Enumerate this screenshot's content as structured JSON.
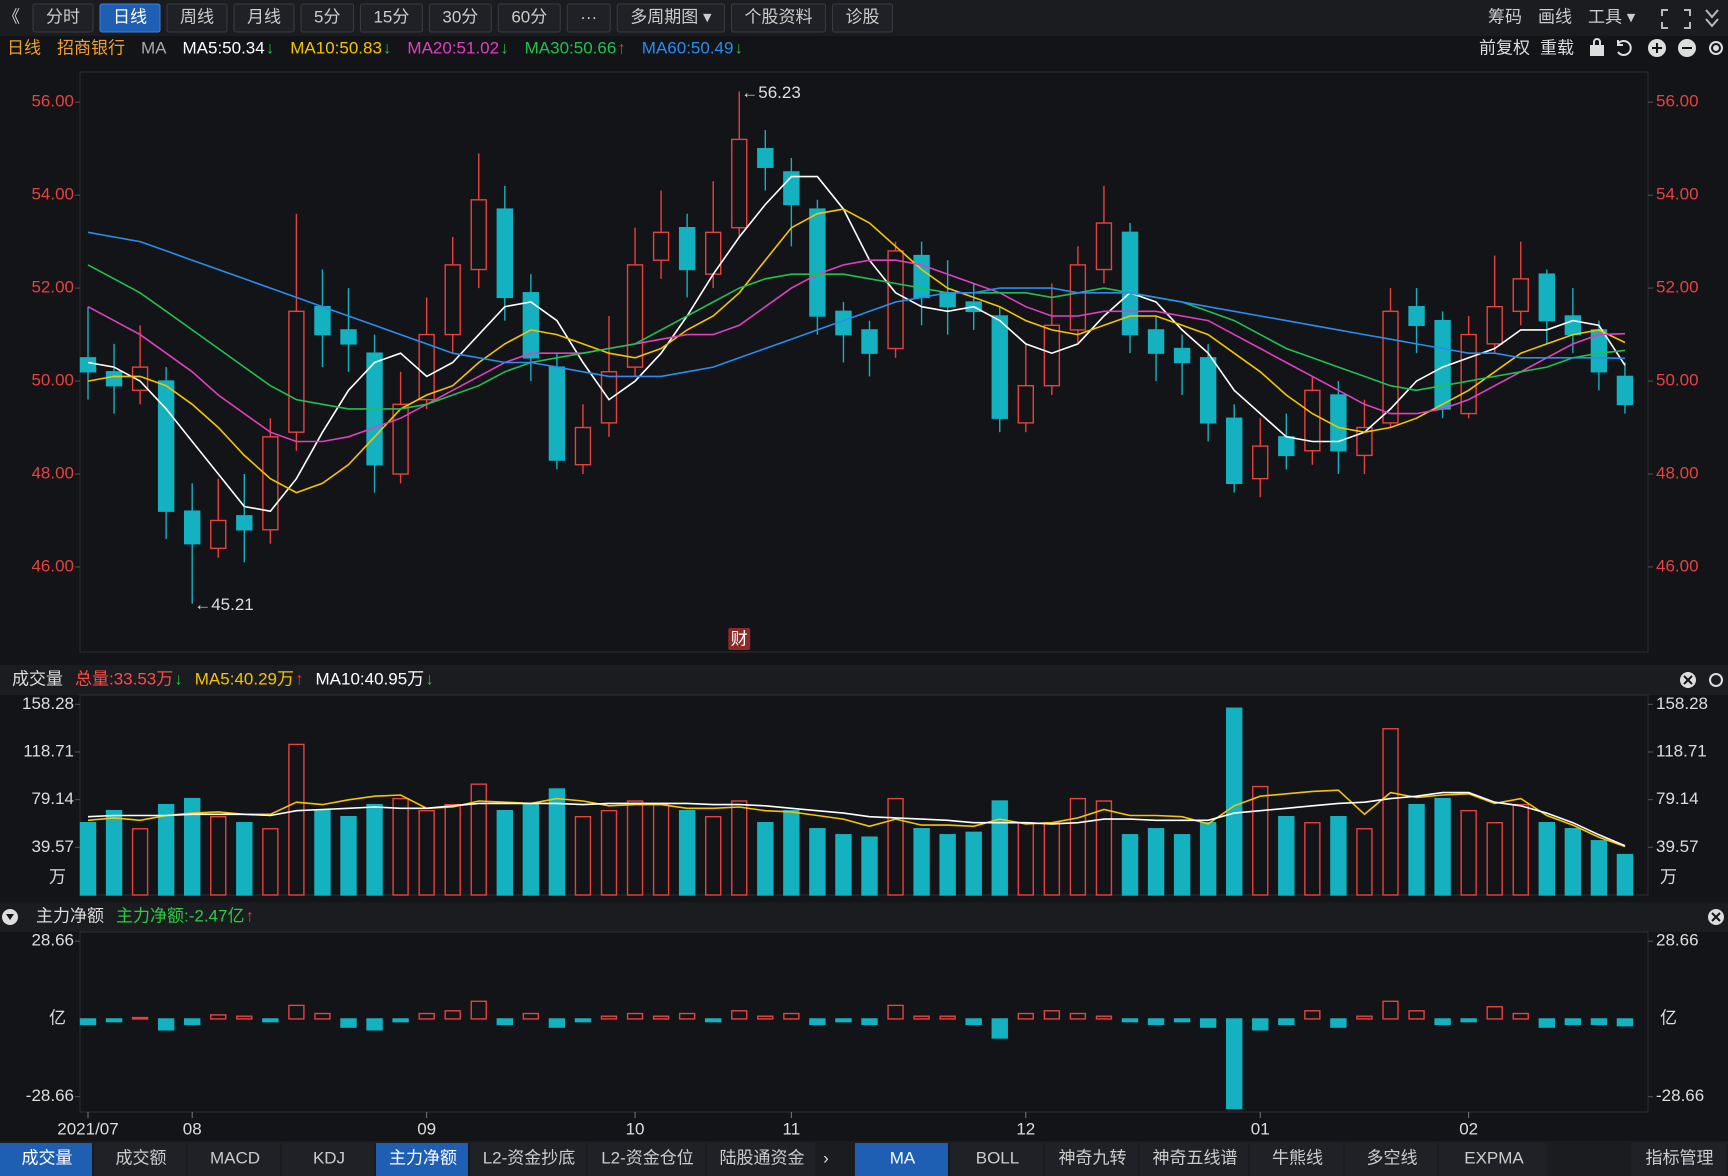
{
  "toolbar": {
    "back": "《",
    "active": 1,
    "tabs": [
      "分时",
      "日线",
      "周线",
      "月线",
      "5分",
      "15分",
      "30分",
      "60分",
      "···",
      "多周期图 ▾",
      "个股资料",
      "诊股"
    ],
    "right": [
      "筹码",
      "画线",
      "工具 ▾"
    ]
  },
  "info": {
    "period": "日线",
    "stock": "招商银行",
    "indicator": "MA",
    "right": [
      "前复权",
      "重载"
    ]
  },
  "chart_data": [
    {
      "type": "candlestick",
      "categories": [
        "2021/07",
        null,
        null,
        null,
        "08",
        null,
        null,
        null,
        null,
        null,
        null,
        null,
        null,
        "09",
        null,
        null,
        null,
        null,
        null,
        null,
        null,
        "10",
        null,
        null,
        null,
        null,
        null,
        "11",
        null,
        null,
        null,
        null,
        null,
        null,
        null,
        null,
        "12",
        null,
        null,
        null,
        null,
        null,
        null,
        null,
        null,
        "01",
        null,
        null,
        null,
        null,
        null,
        null,
        null,
        "02",
        null,
        null,
        null,
        null,
        null,
        null
      ],
      "open": [
        50.5,
        50.2,
        49.8,
        50.0,
        47.2,
        46.4,
        47.1,
        46.8,
        48.9,
        51.6,
        51.1,
        50.6,
        48.0,
        49.6,
        51.0,
        52.4,
        53.7,
        51.9,
        50.3,
        48.2,
        49.1,
        50.3,
        52.6,
        53.3,
        52.3,
        53.3,
        55.0,
        54.5,
        53.7,
        51.5,
        51.1,
        50.7,
        52.7,
        51.9,
        51.7,
        51.4,
        49.1,
        49.9,
        51.1,
        52.4,
        53.2,
        51.1,
        50.7,
        50.5,
        49.2,
        47.9,
        48.8,
        48.5,
        49.7,
        48.4,
        49.1,
        51.6,
        51.3,
        49.3,
        50.8,
        51.5,
        52.3,
        51.4,
        51.1,
        50.1
      ],
      "high": [
        51.6,
        50.8,
        51.2,
        50.3,
        47.8,
        47.9,
        48.0,
        49.2,
        53.6,
        52.4,
        52.0,
        51.0,
        50.2,
        51.8,
        53.1,
        54.9,
        54.2,
        52.3,
        50.6,
        49.5,
        51.4,
        53.3,
        54.1,
        53.6,
        54.3,
        56.23,
        55.4,
        54.8,
        53.9,
        51.7,
        51.3,
        53.0,
        53.0,
        52.6,
        52.1,
        51.6,
        50.8,
        52.1,
        52.9,
        54.2,
        53.4,
        51.4,
        51.0,
        50.8,
        49.5,
        49.2,
        49.3,
        50.1,
        50.0,
        49.6,
        52.0,
        52.0,
        51.5,
        51.4,
        52.7,
        53.0,
        52.4,
        52.0,
        51.3,
        50.4
      ],
      "low": [
        49.6,
        49.3,
        49.5,
        46.6,
        45.21,
        46.2,
        46.1,
        46.5,
        48.5,
        50.3,
        50.2,
        47.6,
        47.8,
        49.4,
        50.6,
        52.0,
        51.3,
        50.0,
        48.1,
        48.0,
        48.8,
        50.1,
        52.2,
        51.8,
        52.0,
        53.1,
        54.1,
        52.9,
        51.0,
        50.4,
        50.1,
        50.5,
        51.2,
        51.0,
        51.1,
        48.9,
        48.9,
        49.7,
        50.8,
        52.1,
        50.6,
        50.0,
        49.7,
        48.7,
        47.6,
        47.5,
        48.1,
        48.2,
        48.0,
        48.0,
        49.0,
        50.6,
        49.2,
        49.2,
        50.6,
        51.2,
        50.8,
        50.6,
        49.8,
        49.3
      ],
      "close": [
        50.2,
        49.9,
        50.3,
        47.2,
        46.5,
        47.0,
        46.8,
        48.8,
        51.5,
        51.0,
        50.8,
        48.2,
        49.5,
        51.0,
        52.5,
        53.9,
        51.8,
        50.5,
        48.3,
        49.0,
        50.2,
        52.5,
        53.2,
        52.4,
        53.2,
        55.2,
        54.6,
        53.8,
        51.4,
        51.0,
        50.6,
        52.8,
        51.8,
        51.6,
        51.5,
        49.2,
        49.9,
        51.2,
        52.5,
        53.4,
        51.0,
        50.6,
        50.4,
        49.1,
        47.8,
        48.6,
        48.4,
        49.8,
        48.5,
        49.0,
        51.5,
        51.2,
        49.4,
        51.0,
        51.6,
        52.2,
        51.3,
        51.0,
        50.2,
        49.5
      ],
      "up_color": "#e8413f",
      "down_color": "#14b1c0",
      "ylim": [
        44.17,
        56.65
      ],
      "yticks": [
        {
          "value": 46,
          "label": "46.00"
        },
        {
          "value": 48,
          "label": "48.00"
        },
        {
          "value": 50,
          "label": "50.00"
        },
        {
          "value": 52,
          "label": "52.00"
        },
        {
          "value": 54,
          "label": "54.00"
        },
        {
          "value": 56,
          "label": "56.00"
        }
      ],
      "high_label": "←56.23",
      "low_label": "←45.21",
      "event_marker": "财",
      "series": [
        {
          "name": "MA5:50.34",
          "trend": "↓",
          "trend_color": "#1fc02f",
          "color": "#ffffff",
          "values": [
            50.4,
            50.3,
            50.0,
            49.4,
            48.7,
            48.0,
            47.3,
            47.2,
            47.9,
            48.9,
            49.8,
            50.4,
            50.6,
            50.1,
            50.4,
            51.0,
            51.6,
            51.7,
            51.3,
            50.4,
            49.6,
            50.0,
            50.6,
            51.4,
            52.3,
            53.1,
            53.8,
            54.4,
            54.4,
            53.7,
            52.6,
            51.9,
            51.6,
            51.5,
            51.6,
            51.3,
            50.8,
            50.6,
            50.8,
            51.4,
            51.9,
            51.7,
            51.1,
            50.6,
            49.8,
            49.3,
            48.8,
            48.7,
            48.7,
            48.9,
            49.4,
            50.0,
            50.3,
            50.5,
            50.7,
            51.1,
            51.1,
            51.3,
            51.2,
            50.34
          ]
        },
        {
          "name": "MA10:50.83",
          "trend": "↓",
          "trend_color": "#1fc02f",
          "color": "#f5c400",
          "values": [
            50.0,
            50.1,
            50.1,
            49.9,
            49.5,
            49.0,
            48.4,
            47.9,
            47.6,
            47.8,
            48.2,
            48.8,
            49.4,
            49.7,
            49.9,
            50.4,
            50.8,
            51.1,
            51.0,
            50.8,
            50.6,
            50.5,
            50.7,
            51.1,
            51.4,
            51.9,
            52.6,
            53.3,
            53.6,
            53.7,
            53.4,
            52.9,
            52.4,
            52.0,
            51.8,
            51.6,
            51.3,
            51.1,
            51.0,
            51.2,
            51.4,
            51.4,
            51.2,
            51.0,
            50.6,
            50.2,
            49.7,
            49.3,
            49.0,
            48.9,
            49.0,
            49.2,
            49.5,
            49.8,
            50.2,
            50.6,
            50.8,
            51.0,
            51.1,
            50.83
          ]
        },
        {
          "name": "MA20:51.02",
          "trend": "↓",
          "trend_color": "#1fc02f",
          "color": "#e040c0",
          "values": [
            51.6,
            51.3,
            51.0,
            50.6,
            50.2,
            49.7,
            49.3,
            48.9,
            48.7,
            48.7,
            48.8,
            49.0,
            49.2,
            49.5,
            49.8,
            50.1,
            50.4,
            50.6,
            50.6,
            50.6,
            50.7,
            50.8,
            50.9,
            51.0,
            51.0,
            51.2,
            51.6,
            52.0,
            52.3,
            52.5,
            52.6,
            52.6,
            52.5,
            52.3,
            52.1,
            51.9,
            51.6,
            51.4,
            51.4,
            51.5,
            51.5,
            51.5,
            51.4,
            51.3,
            51.0,
            50.7,
            50.4,
            50.1,
            49.8,
            49.5,
            49.3,
            49.3,
            49.4,
            49.6,
            49.9,
            50.2,
            50.5,
            50.8,
            51.0,
            51.02
          ]
        },
        {
          "name": "MA30:50.66",
          "trend": "↑",
          "trend_color": "#ff3333",
          "color": "#20c050",
          "values": [
            52.5,
            52.2,
            51.9,
            51.5,
            51.1,
            50.7,
            50.3,
            49.9,
            49.6,
            49.5,
            49.4,
            49.4,
            49.4,
            49.5,
            49.7,
            49.9,
            50.2,
            50.4,
            50.5,
            50.6,
            50.7,
            50.8,
            51.1,
            51.4,
            51.7,
            52.0,
            52.2,
            52.3,
            52.3,
            52.3,
            52.2,
            52.1,
            52.0,
            51.9,
            51.9,
            51.9,
            51.9,
            51.8,
            51.9,
            52.0,
            51.9,
            51.8,
            51.7,
            51.5,
            51.3,
            51.0,
            50.7,
            50.5,
            50.3,
            50.1,
            49.9,
            49.8,
            49.9,
            50.0,
            50.1,
            50.2,
            50.3,
            50.5,
            50.6,
            50.66
          ]
        },
        {
          "name": "MA60:50.49",
          "trend": "↓",
          "trend_color": "#1fc02f",
          "color": "#2a8cf0",
          "values": [
            53.2,
            53.1,
            53.0,
            52.8,
            52.6,
            52.4,
            52.2,
            52.0,
            51.8,
            51.6,
            51.4,
            51.2,
            51.0,
            50.8,
            50.6,
            50.5,
            50.4,
            50.4,
            50.3,
            50.2,
            50.1,
            50.1,
            50.1,
            50.2,
            50.3,
            50.5,
            50.7,
            50.9,
            51.1,
            51.3,
            51.5,
            51.7,
            51.8,
            51.9,
            51.9,
            52.0,
            52.0,
            52.0,
            51.9,
            51.9,
            51.9,
            51.8,
            51.7,
            51.6,
            51.5,
            51.4,
            51.3,
            51.2,
            51.1,
            51.0,
            50.9,
            50.8,
            50.7,
            50.6,
            50.6,
            50.5,
            50.5,
            50.5,
            50.5,
            50.49
          ]
        }
      ]
    },
    {
      "type": "bar",
      "title": "成交量",
      "unit": "万",
      "legend": [
        {
          "text": "总量:33.53万",
          "color": "#ff4a4a",
          "trend": "↓",
          "trend_color": "#1fc02f"
        }
      ],
      "values": [
        60,
        70,
        55,
        75,
        80,
        65,
        60,
        55,
        125,
        70,
        65,
        75,
        80,
        70,
        75,
        92,
        70,
        75,
        88,
        65,
        70,
        78,
        75,
        70,
        65,
        78,
        60,
        70,
        55,
        50,
        48,
        80,
        55,
        50,
        52,
        78,
        60,
        60,
        80,
        78,
        50,
        55,
        50,
        60,
        155,
        90,
        65,
        60,
        65,
        55,
        138,
        75,
        80,
        70,
        60,
        75,
        60,
        55,
        45,
        33.53
      ],
      "ylim": [
        0,
        166
      ],
      "yticks": [
        39.57,
        79.14,
        118.71,
        158.28
      ],
      "series": [
        {
          "name": "MA5:40.29万",
          "trend": "↑",
          "trend_color": "#ff3333",
          "color": "#f5c400",
          "values": [
            62,
            64,
            62,
            66,
            68,
            69,
            67,
            67,
            77,
            75,
            79,
            82,
            83,
            72,
            73,
            78,
            77,
            76,
            80,
            78,
            74,
            75,
            75,
            72,
            72,
            73,
            70,
            69,
            66,
            63,
            57,
            63,
            58,
            58,
            57,
            63,
            59,
            60,
            64,
            71,
            66,
            66,
            65,
            59,
            74,
            82,
            84,
            86,
            87,
            67,
            85,
            81,
            83,
            84,
            76,
            80,
            66,
            58,
            48,
            40.29
          ]
        },
        {
          "name": "MA10:40.95万",
          "trend": "↓",
          "trend_color": "#1fc02f",
          "color": "#ffffff",
          "values": [
            65,
            66,
            66,
            66,
            67,
            67,
            67,
            66,
            70,
            71,
            72,
            73,
            72,
            72,
            74,
            76,
            76,
            76,
            76,
            75,
            76,
            76,
            76,
            76,
            75,
            75,
            74,
            72,
            70,
            68,
            65,
            64,
            63,
            62,
            60,
            60,
            60,
            59,
            60,
            63,
            63,
            62,
            62,
            62,
            68,
            70,
            72,
            74,
            76,
            77,
            80,
            82,
            85,
            85,
            77,
            74,
            68,
            60,
            50,
            40.95
          ]
        }
      ]
    },
    {
      "type": "bar",
      "title": "主力净额",
      "unit": "亿",
      "legend": [
        {
          "text": "主力净额:-2.47亿",
          "color": "#2ecc40",
          "trend": "↑",
          "trend_color": "#ff3333"
        }
      ],
      "values": [
        -2,
        -1,
        0.5,
        -4,
        -2,
        1.5,
        1,
        -1,
        5,
        2,
        -3,
        -4,
        -1,
        2,
        3,
        6.5,
        -2,
        2,
        -3,
        -1,
        1,
        2,
        1,
        2,
        -1,
        3,
        1,
        2,
        -2,
        -1,
        -2,
        5,
        1,
        1,
        -2,
        -7,
        2,
        3,
        2,
        1,
        -1,
        -2,
        -1,
        -3,
        -33,
        -4,
        -2,
        3,
        -3,
        1,
        6.5,
        3,
        -2,
        -1,
        4.5,
        2,
        -3,
        -2,
        -2,
        -2.47
      ],
      "ylim": [
        -34.3,
        32.05
      ],
      "yticks": [
        -28.66,
        28.66
      ],
      "pos_color": "#e8413f",
      "neg_color": "#14b1c0"
    }
  ],
  "bottom_tabs": {
    "left": [
      "成交量",
      "成交额",
      "MACD",
      "KDJ",
      "主力净额",
      "L2-资金抄底",
      "L2-资金仓位",
      "陆股通资金"
    ],
    "left_active": [
      0,
      4
    ],
    "right": [
      "MA",
      "BOLL",
      "神奇九转",
      "神奇五线谱",
      "牛熊线",
      "多空线",
      "EXPMA"
    ],
    "right_active": 0,
    "manage": "指标管理"
  }
}
